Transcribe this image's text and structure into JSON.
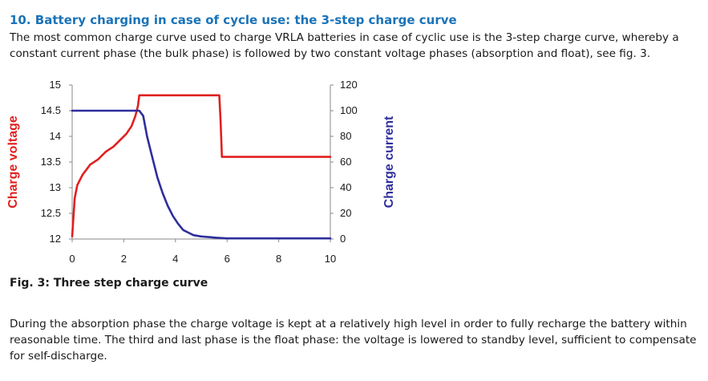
{
  "heading": "10. Battery charging in case of cycle use: the 3-step charge curve",
  "intro_text": "The most common charge curve used to charge VRLA batteries in case of cyclic use is the 3-step charge curve, whereby a constant current phase (the bulk phase) is followed by two constant voltage phases (absorption and float), see fig. 3.",
  "figure_caption": "Fig. 3: Three step charge curve",
  "body_text": "During the absorption phase the charge voltage is kept at a relatively high level in order to fully recharge the battery within reasonable time. The third and last phase is the float phase: the voltage is lowered to standby level, sufficient to compensate for self-discharge.",
  "colors": {
    "heading": "#1a73b8",
    "voltage": "#e02020",
    "current": "#2e2e9e"
  },
  "chart_data": {
    "type": "line",
    "title": "",
    "xlabel": "",
    "ylabel_left": "Charge voltage",
    "ylabel_right": "Charge current",
    "xlim": [
      0,
      10
    ],
    "ylim_left": [
      12,
      15
    ],
    "ylim_right": [
      0,
      120
    ],
    "x_ticks": [
      "0",
      "2",
      "4",
      "6",
      "8",
      "10"
    ],
    "y_left_ticks": [
      "15",
      "14.5",
      "14",
      "13.5",
      "13",
      "12.5",
      "12"
    ],
    "y_right_ticks": [
      "120",
      "100",
      "80",
      "60",
      "40",
      "20",
      "0"
    ],
    "series": [
      {
        "name": "Charge voltage",
        "axis": "left",
        "color": "#e02020",
        "x": [
          0,
          0.1,
          0.2,
          0.4,
          0.7,
          1.0,
          1.3,
          1.6,
          1.9,
          2.1,
          2.3,
          2.45,
          2.55,
          2.6,
          5.7,
          5.75,
          5.8,
          10
        ],
        "y": [
          12.05,
          12.8,
          13.05,
          13.25,
          13.45,
          13.55,
          13.7,
          13.8,
          13.95,
          14.05,
          14.2,
          14.4,
          14.6,
          14.8,
          14.8,
          14.3,
          13.6,
          13.6
        ]
      },
      {
        "name": "Charge current",
        "axis": "right",
        "color": "#2e2e9e",
        "x": [
          0,
          2.5,
          2.6,
          2.75,
          2.9,
          3.1,
          3.3,
          3.5,
          3.7,
          3.9,
          4.1,
          4.3,
          4.5,
          4.7,
          5.0,
          5.3,
          5.6,
          6.0,
          10
        ],
        "y": [
          100,
          100,
          100,
          96,
          80,
          64,
          48,
          36,
          26,
          18,
          12,
          7,
          5,
          3,
          2,
          1.5,
          1,
          0.5,
          0.5
        ]
      }
    ]
  }
}
